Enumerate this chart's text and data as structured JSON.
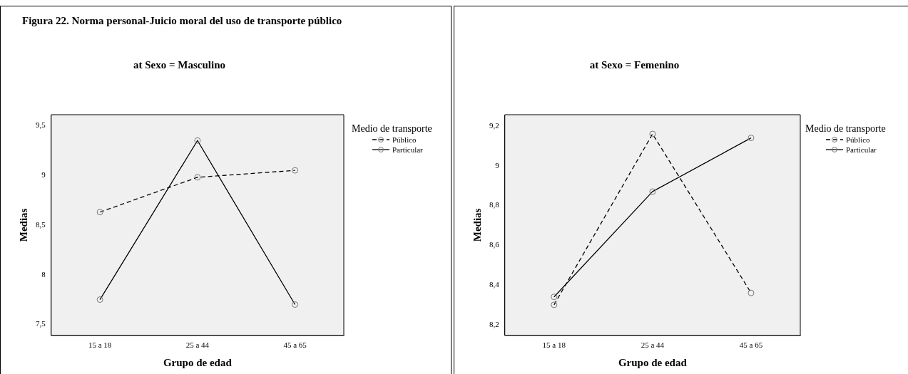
{
  "chart_data": [
    {
      "type": "line",
      "title": "at Sexo = Masculino",
      "annotations": [
        "Figura 22. Norma personal-Juicio moral del uso de transporte público"
      ],
      "xlabel": "Grupo de edad",
      "ylabel": "Medias",
      "legend_title": "Medio de transporte",
      "legend": "top right",
      "marker": "circle",
      "grid": false,
      "categories": [
        "15 a 18",
        "25 a 44",
        "45 a 65"
      ],
      "ylim": [
        7.39,
        9.61
      ],
      "yticks": [
        {
          "value": 7.5,
          "label": "7,5"
        },
        {
          "value": 8,
          "label": "8"
        },
        {
          "value": 8.5,
          "label": "8,5"
        },
        {
          "value": 9,
          "label": "9"
        },
        {
          "value": 9.5,
          "label": "9,5"
        }
      ],
      "series": [
        {
          "name": "Público",
          "color": "#000000",
          "line_style": "dashed",
          "values": [
            8.63,
            8.98,
            9.05
          ]
        },
        {
          "name": "Particular",
          "color": "#000000",
          "line_style": "solid",
          "values": [
            7.75,
            9.35,
            7.7
          ]
        }
      ]
    },
    {
      "type": "line",
      "title": "at Sexo = Femenino",
      "xlabel": "Grupo de edad",
      "ylabel": "Medias",
      "legend_title": "Medio de transporte",
      "legend": "top right",
      "marker": "circle",
      "grid": false,
      "categories": [
        "15 a 18",
        "25 a 44",
        "45 a 65"
      ],
      "ylim": [
        8.146,
        9.257
      ],
      "yticks": [
        {
          "value": 8.2,
          "label": "8,2"
        },
        {
          "value": 8.4,
          "label": "8,4"
        },
        {
          "value": 8.6,
          "label": "8,6"
        },
        {
          "value": 8.8,
          "label": "8,8"
        },
        {
          "value": 9,
          "label": "9"
        },
        {
          "value": 9.2,
          "label": "9,2"
        }
      ],
      "series": [
        {
          "name": "Público",
          "color": "#000000",
          "line_style": "dashed",
          "values": [
            8.3,
            9.16,
            8.36
          ]
        },
        {
          "name": "Particular",
          "color": "#000000",
          "line_style": "solid",
          "values": [
            8.34,
            8.87,
            9.14
          ]
        }
      ]
    }
  ]
}
